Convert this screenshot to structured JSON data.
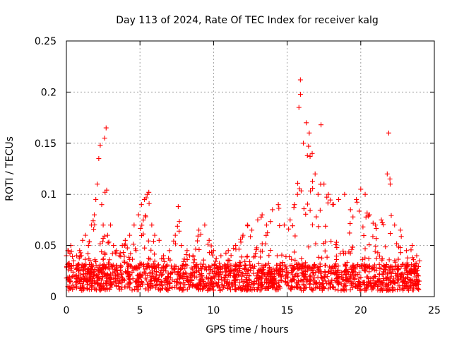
{
  "chart_data": {
    "type": "scatter",
    "title": "Day 113 of 2024, Rate Of TEC Index for receiver kalg",
    "xlabel": "GPS time / hours",
    "ylabel": "ROTI / TECUs",
    "xlim": [
      0,
      25
    ],
    "ylim": [
      0,
      0.25
    ],
    "xticks": [
      0,
      5,
      10,
      15,
      20,
      25
    ],
    "yticks": [
      0,
      0.05,
      0.1,
      0.15,
      0.2,
      0.25
    ],
    "xtick_labels": [
      "0",
      "5",
      "10",
      "15",
      "20",
      "25"
    ],
    "ytick_labels": [
      "0",
      "0.05",
      "0.1",
      "0.15",
      "0.2",
      "0.25"
    ],
    "grid": true,
    "marker": "+",
    "color": "#ff0000",
    "series": [
      {
        "name": "ROTI",
        "x": [
          0.0,
          0.1,
          0.3,
          0.5,
          0.7,
          0.9,
          1.1,
          1.3,
          1.5,
          1.7,
          1.9,
          2.0,
          2.1,
          2.2,
          2.3,
          2.4,
          2.5,
          2.6,
          2.7,
          2.8,
          3.0,
          3.2,
          3.4,
          3.6,
          3.8,
          4.0,
          4.3,
          4.6,
          4.9,
          5.1,
          5.3,
          5.5,
          5.6,
          5.8,
          6.0,
          6.3,
          6.6,
          7.0,
          7.4,
          7.6,
          7.8,
          8.2,
          8.6,
          9.0,
          9.4,
          9.7,
          10.0,
          10.5,
          11.0,
          11.5,
          12.0,
          12.3,
          12.6,
          13.0,
          13.3,
          13.6,
          14.0,
          14.4,
          14.8,
          15.2,
          15.5,
          15.7,
          15.8,
          15.9,
          16.1,
          16.3,
          16.5,
          16.7,
          16.9,
          17.1,
          17.3,
          17.5,
          17.8,
          18.1,
          18.5,
          18.9,
          19.3,
          19.7,
          20.0,
          20.3,
          20.6,
          21.0,
          21.4,
          21.8,
          21.9,
          22.0,
          22.3,
          22.7,
          23.1,
          23.5,
          23.8,
          24.0
        ],
        "y": [
          0.04,
          0.045,
          0.05,
          0.035,
          0.04,
          0.045,
          0.055,
          0.06,
          0.05,
          0.07,
          0.08,
          0.095,
          0.11,
          0.135,
          0.148,
          0.09,
          0.07,
          0.155,
          0.165,
          0.06,
          0.07,
          0.05,
          0.045,
          0.04,
          0.05,
          0.055,
          0.06,
          0.07,
          0.08,
          0.09,
          0.095,
          0.1,
          0.102,
          0.07,
          0.06,
          0.055,
          0.04,
          0.045,
          0.06,
          0.088,
          0.05,
          0.045,
          0.04,
          0.065,
          0.07,
          0.055,
          0.045,
          0.04,
          0.045,
          0.05,
          0.06,
          0.07,
          0.065,
          0.075,
          0.08,
          0.07,
          0.085,
          0.09,
          0.07,
          0.075,
          0.09,
          0.1,
          0.185,
          0.212,
          0.15,
          0.17,
          0.16,
          0.14,
          0.12,
          0.1,
          0.168,
          0.11,
          0.1,
          0.09,
          0.095,
          0.1,
          0.085,
          0.095,
          0.105,
          0.1,
          0.08,
          0.07,
          0.075,
          0.12,
          0.16,
          0.11,
          0.07,
          0.065,
          0.045,
          0.05,
          0.04,
          0.035
        ]
      }
    ]
  }
}
